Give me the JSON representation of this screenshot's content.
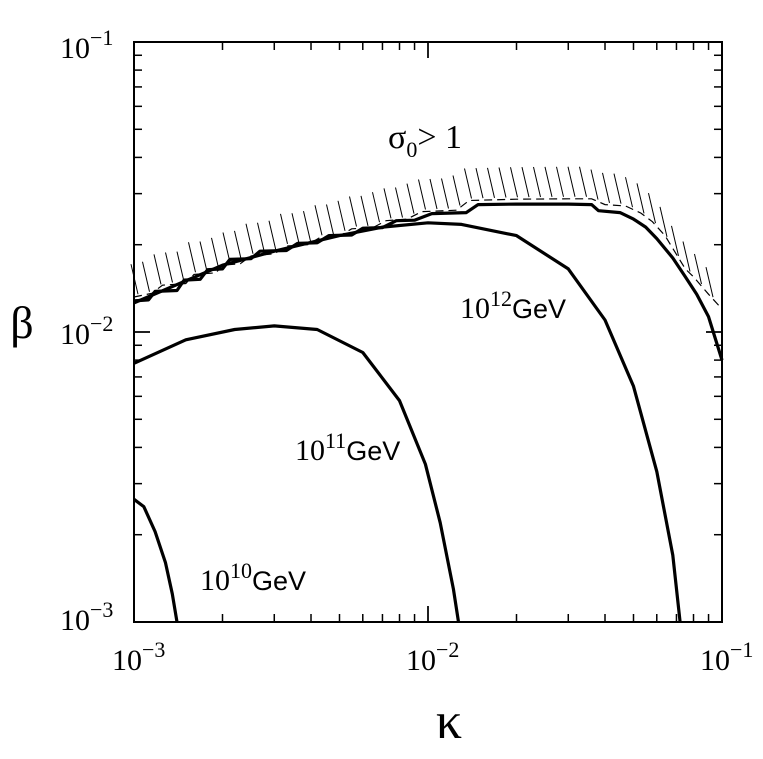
{
  "chart_data": {
    "type": "line",
    "xscale": "log",
    "yscale": "log",
    "xlim": [
      0.001,
      0.1
    ],
    "ylim": [
      0.001,
      0.1
    ],
    "xlabel": "κ",
    "ylabel": "β",
    "x_ticks": [
      {
        "base": "10",
        "exp": "−3"
      },
      {
        "base": "10",
        "exp": "−2"
      },
      {
        "base": "10",
        "exp": "−1"
      }
    ],
    "y_ticks": [
      {
        "base": "10",
        "exp": "−3"
      },
      {
        "base": "10",
        "exp": "−2"
      },
      {
        "base": "10",
        "exp": "−1"
      }
    ],
    "annotations": {
      "constraint": {
        "sym": "σ",
        "sub": "0",
        "rest": "> 1"
      }
    },
    "series": [
      {
        "label_base": "10",
        "label_exp": "10",
        "label_unit": "GeV",
        "points": [
          [
            0.001,
            0.00265
          ],
          [
            0.00108,
            0.0025
          ],
          [
            0.00118,
            0.00205
          ],
          [
            0.00128,
            0.0016
          ],
          [
            0.00135,
            0.00125
          ],
          [
            0.0014,
            0.001
          ]
        ]
      },
      {
        "label_base": "10",
        "label_exp": "11",
        "label_unit": "GeV",
        "points": [
          [
            0.001,
            0.0078
          ],
          [
            0.0015,
            0.0094
          ],
          [
            0.0022,
            0.0102
          ],
          [
            0.003,
            0.0105
          ],
          [
            0.0042,
            0.0102
          ],
          [
            0.006,
            0.0085
          ],
          [
            0.008,
            0.0058
          ],
          [
            0.0098,
            0.0035
          ],
          [
            0.011,
            0.0022
          ],
          [
            0.0122,
            0.0013
          ],
          [
            0.0127,
            0.001
          ]
        ]
      },
      {
        "label_base": "10",
        "label_exp": "12",
        "label_unit": "GeV",
        "points": [
          [
            0.001,
            0.0126
          ],
          [
            0.002,
            0.017
          ],
          [
            0.003,
            0.019
          ],
          [
            0.005,
            0.0215
          ],
          [
            0.007,
            0.023
          ],
          [
            0.01,
            0.0238
          ],
          [
            0.013,
            0.0235
          ],
          [
            0.02,
            0.0215
          ],
          [
            0.03,
            0.0165
          ],
          [
            0.04,
            0.011
          ],
          [
            0.05,
            0.0065
          ],
          [
            0.06,
            0.0033
          ],
          [
            0.068,
            0.0017
          ],
          [
            0.072,
            0.001
          ]
        ]
      }
    ],
    "boundary": {
      "points": [
        [
          0.001,
          0.0128
        ],
        [
          0.00112,
          0.0129
        ],
        [
          0.00118,
          0.0138
        ],
        [
          0.0014,
          0.0139
        ],
        [
          0.00148,
          0.0151
        ],
        [
          0.00168,
          0.0152
        ],
        [
          0.00178,
          0.0164
        ],
        [
          0.002,
          0.0165
        ],
        [
          0.00212,
          0.0178
        ],
        [
          0.0025,
          0.0179
        ],
        [
          0.00268,
          0.019
        ],
        [
          0.0033,
          0.0191
        ],
        [
          0.0036,
          0.0202
        ],
        [
          0.0042,
          0.0203
        ],
        [
          0.0046,
          0.0215
        ],
        [
          0.0055,
          0.0216
        ],
        [
          0.006,
          0.0228
        ],
        [
          0.007,
          0.0229
        ],
        [
          0.0078,
          0.0242
        ],
        [
          0.009,
          0.0243
        ],
        [
          0.0103,
          0.0256
        ],
        [
          0.0135,
          0.0258
        ],
        [
          0.0148,
          0.0275
        ],
        [
          0.02,
          0.0276
        ],
        [
          0.025,
          0.0276
        ],
        [
          0.03,
          0.0276
        ],
        [
          0.036,
          0.0275
        ],
        [
          0.038,
          0.0262
        ],
        [
          0.045,
          0.0258
        ],
        [
          0.05,
          0.0245
        ],
        [
          0.055,
          0.023
        ],
        [
          0.06,
          0.021
        ],
        [
          0.068,
          0.018
        ],
        [
          0.075,
          0.0155
        ],
        [
          0.082,
          0.0135
        ],
        [
          0.09,
          0.0113
        ],
        [
          0.1,
          0.008
        ]
      ],
      "dashed_points": [
        [
          0.001,
          0.0132
        ],
        [
          0.00115,
          0.0136
        ],
        [
          0.00125,
          0.0145
        ],
        [
          0.0015,
          0.0147
        ],
        [
          0.0016,
          0.0158
        ],
        [
          0.0019,
          0.016
        ],
        [
          0.002,
          0.017
        ],
        [
          0.0023,
          0.0172
        ],
        [
          0.0025,
          0.0183
        ],
        [
          0.003,
          0.0186
        ],
        [
          0.0033,
          0.0198
        ],
        [
          0.0039,
          0.02
        ],
        [
          0.0043,
          0.0212
        ],
        [
          0.005,
          0.0214
        ],
        [
          0.0055,
          0.0227
        ],
        [
          0.0065,
          0.0229
        ],
        [
          0.0072,
          0.0242
        ],
        [
          0.0085,
          0.0245
        ],
        [
          0.0095,
          0.026
        ],
        [
          0.0125,
          0.0263
        ],
        [
          0.0138,
          0.0284
        ],
        [
          0.02,
          0.0287
        ],
        [
          0.03,
          0.0288
        ],
        [
          0.036,
          0.0288
        ],
        [
          0.04,
          0.0275
        ],
        [
          0.047,
          0.0272
        ],
        [
          0.053,
          0.0257
        ],
        [
          0.058,
          0.024
        ],
        [
          0.064,
          0.0215
        ],
        [
          0.07,
          0.0185
        ],
        [
          0.075,
          0.0165
        ],
        [
          0.08,
          0.0155
        ],
        [
          0.09,
          0.0135
        ],
        [
          0.1,
          0.012
        ]
      ]
    },
    "grid": false,
    "legend": "none"
  }
}
